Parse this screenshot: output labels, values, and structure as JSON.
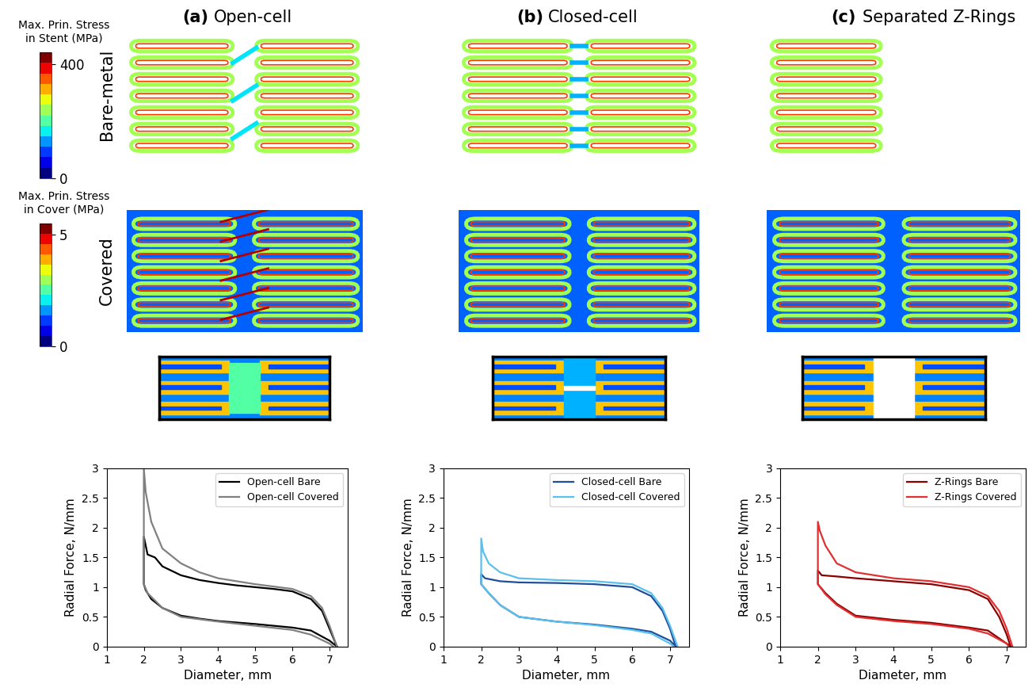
{
  "panels": {
    "columns": [
      {
        "tag": "(a)",
        "name": "Open-cell",
        "kind": "open"
      },
      {
        "tag": "(b)",
        "name": "Closed-cell",
        "kind": "closed"
      },
      {
        "tag": "(c)",
        "name": "Separated Z-Rings",
        "kind": "zrings"
      }
    ],
    "rows": [
      {
        "label": "Bare-metal",
        "colorbar": {
          "label": "Max. Prin. Stress\nin Stent (MPa)",
          "range": [
            0,
            440
          ],
          "ticks": [
            0,
            400
          ]
        }
      },
      {
        "label": "Covered",
        "colorbar": {
          "label": "Max. Prin. Stress\nin Cover (MPa)",
          "range": [
            0,
            5.5
          ],
          "ticks": [
            0,
            5
          ]
        }
      }
    ]
  },
  "chart_data": [
    {
      "type": "line",
      "xlabel": "Diameter, mm",
      "ylabel": "Radial Force, N/mm",
      "xlim": [
        1,
        7.5
      ],
      "xticks": [
        1,
        2,
        3,
        4,
        5,
        6,
        7
      ],
      "ylim": [
        0,
        3
      ],
      "yticks": [
        0,
        0.5,
        1,
        1.5,
        2,
        2.5,
        3
      ],
      "legend": "upper right",
      "series": [
        {
          "name": "Open-cell Bare",
          "color": "#000000",
          "x": [
            7.2,
            7.0,
            6.8,
            6.5,
            6.0,
            5.5,
            5.0,
            4.5,
            4.0,
            3.5,
            3.0,
            2.5,
            2.3,
            2.1,
            2.0,
            2.0,
            2.05,
            2.2,
            2.5,
            3.0,
            3.5,
            4.0,
            5.0,
            6.0,
            6.5,
            7.0,
            7.2
          ],
          "values": [
            0,
            0.3,
            0.6,
            0.8,
            0.93,
            0.97,
            1.0,
            1.03,
            1.07,
            1.12,
            1.2,
            1.35,
            1.5,
            1.55,
            1.85,
            1.05,
            0.95,
            0.8,
            0.65,
            0.52,
            0.47,
            0.43,
            0.38,
            0.32,
            0.27,
            0.1,
            0
          ]
        },
        {
          "name": "Open-cell Covered",
          "color": "#808080",
          "x": [
            7.2,
            7.0,
            6.8,
            6.5,
            6.0,
            5.0,
            4.0,
            3.5,
            3.0,
            2.5,
            2.2,
            2.05,
            2.0,
            2.0,
            2.1,
            2.5,
            3.0,
            4.0,
            5.0,
            6.0,
            6.5,
            7.0,
            7.1
          ],
          "values": [
            0,
            0.35,
            0.65,
            0.85,
            0.97,
            1.05,
            1.15,
            1.25,
            1.4,
            1.65,
            2.1,
            2.6,
            3.0,
            1.05,
            0.9,
            0.65,
            0.5,
            0.42,
            0.35,
            0.28,
            0.2,
            0.05,
            0
          ]
        }
      ]
    },
    {
      "type": "line",
      "xlabel": "Diameter, mm",
      "ylabel": "Radial Force, N/mm",
      "xlim": [
        1,
        7.5
      ],
      "xticks": [
        1,
        2,
        3,
        4,
        5,
        6,
        7
      ],
      "ylim": [
        0,
        3
      ],
      "yticks": [
        0,
        0.5,
        1,
        1.5,
        2,
        2.5,
        3
      ],
      "legend": "upper right",
      "series": [
        {
          "name": "Closed-cell Bare",
          "color": "#1f4e9c",
          "x": [
            7.15,
            7.0,
            6.8,
            6.5,
            6.0,
            5.0,
            4.0,
            3.0,
            2.5,
            2.1,
            2.0,
            2.0,
            2.2,
            2.5,
            3.0,
            4.0,
            5.0,
            6.0,
            6.5,
            7.0,
            7.15
          ],
          "values": [
            0,
            0.3,
            0.6,
            0.85,
            1.0,
            1.05,
            1.07,
            1.08,
            1.1,
            1.15,
            1.22,
            1.05,
            0.9,
            0.7,
            0.5,
            0.42,
            0.37,
            0.3,
            0.25,
            0.1,
            0
          ]
        },
        {
          "name": "Closed-cell Covered",
          "color": "#5bc0eb",
          "x": [
            7.2,
            7.0,
            6.8,
            6.5,
            6.0,
            5.0,
            4.0,
            3.0,
            2.5,
            2.2,
            2.05,
            2.0,
            2.0,
            2.2,
            2.5,
            3.0,
            4.0,
            5.0,
            6.0,
            6.5,
            7.0,
            7.1
          ],
          "values": [
            0,
            0.35,
            0.65,
            0.9,
            1.05,
            1.1,
            1.12,
            1.15,
            1.25,
            1.4,
            1.6,
            1.82,
            1.05,
            0.9,
            0.7,
            0.5,
            0.42,
            0.36,
            0.28,
            0.22,
            0.05,
            0
          ]
        }
      ]
    },
    {
      "type": "line",
      "xlabel": "Diameter, mm",
      "ylabel": "Radial Force, N/mm",
      "xlim": [
        1,
        7.5
      ],
      "xticks": [
        1,
        2,
        3,
        4,
        5,
        6,
        7
      ],
      "ylim": [
        0,
        3
      ],
      "yticks": [
        0,
        0.5,
        1,
        1.5,
        2,
        2.5,
        3
      ],
      "legend": "upper right",
      "series": [
        {
          "name": "Z-Rings Bare",
          "color": "#8b0000",
          "x": [
            7.1,
            7.0,
            6.8,
            6.5,
            6.0,
            5.0,
            4.0,
            3.0,
            2.5,
            2.1,
            2.0,
            2.0,
            2.2,
            2.5,
            3.0,
            4.0,
            5.0,
            6.0,
            6.5,
            7.0,
            7.1
          ],
          "values": [
            0,
            0.2,
            0.5,
            0.8,
            0.95,
            1.05,
            1.1,
            1.15,
            1.18,
            1.2,
            1.28,
            1.05,
            0.9,
            0.72,
            0.52,
            0.45,
            0.4,
            0.32,
            0.27,
            0.05,
            0
          ]
        },
        {
          "name": "Z-Rings Covered",
          "color": "#e03030",
          "x": [
            7.15,
            7.0,
            6.8,
            6.5,
            6.0,
            5.0,
            4.0,
            3.0,
            2.5,
            2.2,
            2.05,
            2.0,
            2.0,
            2.2,
            2.5,
            3.0,
            4.0,
            5.0,
            6.0,
            6.5,
            7.0,
            7.05
          ],
          "values": [
            0,
            0.3,
            0.6,
            0.85,
            1.0,
            1.1,
            1.15,
            1.25,
            1.4,
            1.7,
            1.95,
            2.1,
            1.05,
            0.88,
            0.7,
            0.5,
            0.43,
            0.38,
            0.3,
            0.22,
            0.05,
            0
          ]
        }
      ]
    }
  ]
}
